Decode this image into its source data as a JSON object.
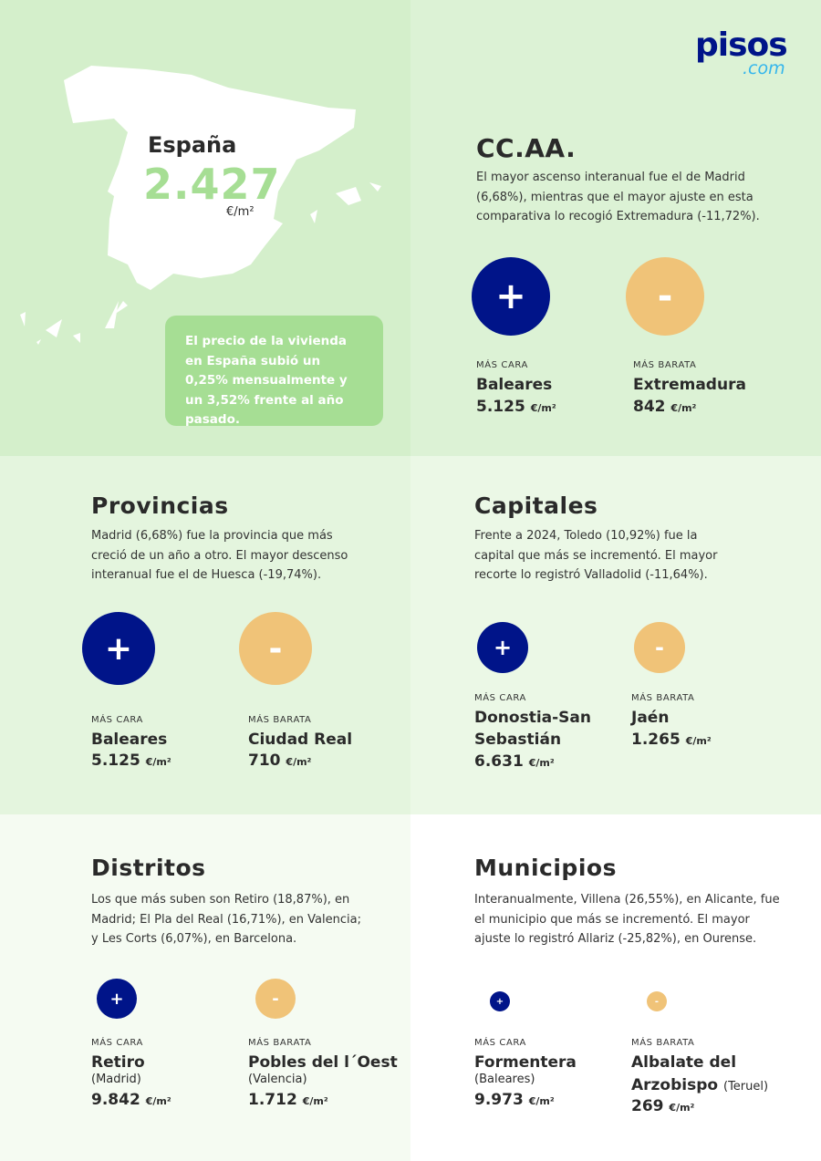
{
  "colors": {
    "primary": "#001489",
    "accent": "#f0c378",
    "green": "#a6de94",
    "logo_com": "#35b6ec"
  },
  "logo": {
    "main": "pisos",
    "suffix": ".com"
  },
  "spain": {
    "title": "España",
    "value": "2.427",
    "unit": "€/m²",
    "note": "El precio de la vivienda en España subió un 0,25% mensualmente y un 3,52% frente al año pasado."
  },
  "labels": {
    "max": "MÁS CARA",
    "min": "MÁS BARATA",
    "unit": "€/m²",
    "plus": "+",
    "minus": "-"
  },
  "sections": {
    "ccaa": {
      "title": "CC.AA.",
      "text": "El mayor ascenso interanual fue el de Madrid (6,68%), mientras que el mayor ajuste en esta comparativa lo recogió Extremadura (-11,72%).",
      "max": {
        "name": "Baleares",
        "price": "5.125"
      },
      "min": {
        "name": "Extremadura",
        "price": "842"
      }
    },
    "provincias": {
      "title": "Provincias",
      "text": "Madrid (6,68%) fue la provincia que más creció de un año a otro. El mayor descenso interanual fue el de Huesca (-19,74%).",
      "max": {
        "name": "Baleares",
        "price": "5.125"
      },
      "min": {
        "name": "Ciudad Real",
        "price": "710"
      }
    },
    "capitales": {
      "title": "Capitales",
      "text": "Frente a 2024, Toledo (10,92%) fue la capital que más se incrementó. El mayor recorte lo registró Valladolid (-11,64%).",
      "max": {
        "name": "Donostia-San Sebastián",
        "price": "6.631"
      },
      "min": {
        "name": "Jaén",
        "price": "1.265"
      }
    },
    "distritos": {
      "title": "Distritos",
      "text": "Los que más suben son Retiro (18,87%), en Madrid; El Pla del Real (16,71%), en Valencia; y Les Corts (6,07%), en Barcelona.",
      "max": {
        "name": "Retiro",
        "sub": "(Madrid)",
        "price": "9.842"
      },
      "min": {
        "name": "Pobles del l´Oest",
        "sub": "(Valencia)",
        "price": "1.712"
      }
    },
    "municipios": {
      "title": "Municipios",
      "text": "Interanualmente, Villena (26,55%), en Alicante, fue el municipio que más se incrementó. El mayor ajuste lo registró Allariz (-25,82%), en Ourense.",
      "max": {
        "name": "Formentera",
        "sub": "(Baleares)",
        "price": "9.973"
      },
      "min": {
        "name": "Albalate del Arzobispo",
        "sub": "(Teruel)",
        "price": "269"
      }
    }
  }
}
